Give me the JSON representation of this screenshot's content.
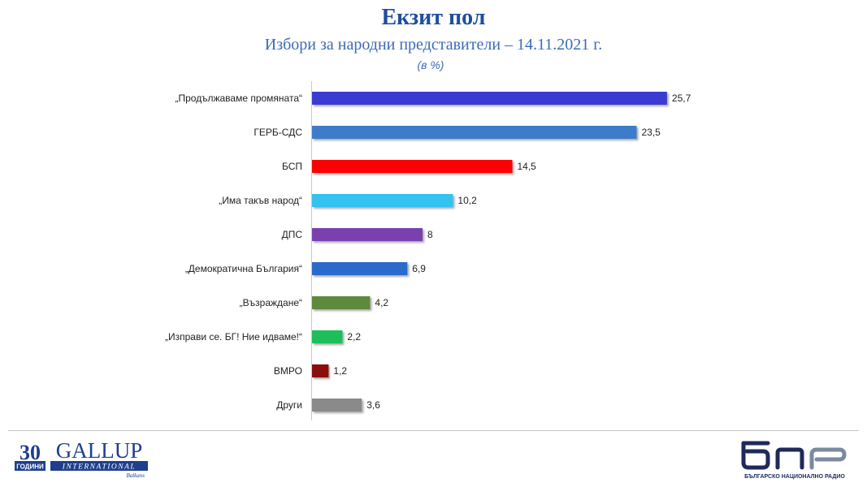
{
  "header": {
    "title": "Екзит пол",
    "subtitle": "Избори за народни представители – 14.11.2021 г.",
    "unit": "(в %)"
  },
  "chart_data": {
    "type": "bar",
    "orientation": "horizontal",
    "title": "Екзит пол",
    "subtitle": "Избори за народни представители – 14.11.2021 г.",
    "unit": "(в %)",
    "categories": [
      "„Продължаваме промяната“",
      "ГЕРБ-СДС",
      "БСП",
      "„Има такъв народ“",
      "ДПС",
      "„Демократична България“",
      "„Възраждане“",
      "„Изправи се. БГ! Ние идваме!“",
      "ВМРО",
      "Други"
    ],
    "values": [
      25.7,
      23.5,
      14.5,
      10.2,
      8,
      6.9,
      4.2,
      2.2,
      1.2,
      3.6
    ],
    "value_labels": [
      "25,7",
      "23,5",
      "14,5",
      "10,2",
      "8",
      "6,9",
      "4,2",
      "2,2",
      "1,2",
      "3,6"
    ],
    "colors": [
      "#3b3bd4",
      "#3d7cc9",
      "#ff0000",
      "#33c3f0",
      "#7a3fb0",
      "#2a6acb",
      "#5d8a3c",
      "#1fbf5a",
      "#8b0a0a",
      "#8a8a8a"
    ],
    "xlim": [
      0,
      26
    ],
    "grid": false,
    "legend": "none"
  },
  "logos": {
    "gallup_number": "30",
    "gallup_years": "ГОДИНИ",
    "gallup_name": "GALLUP",
    "gallup_sub": "INTERNATIONAL",
    "gallup_region": "Balkans",
    "bnr_caption": "БЪЛГАРСКО НАЦИОНАЛНО РАДИО"
  }
}
